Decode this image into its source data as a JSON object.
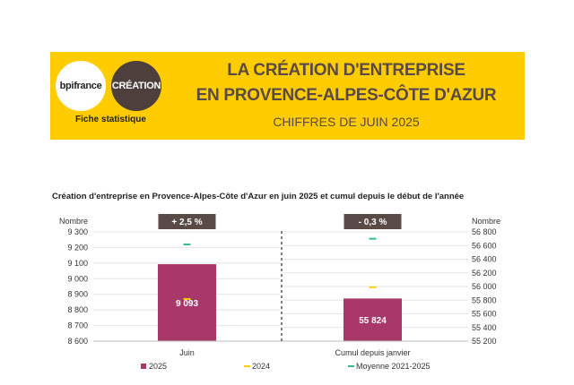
{
  "header": {
    "logo_left": "bpifrance",
    "logo_right": "CRÉATION",
    "subtitle": "Fiche statistique",
    "title_line1": "LA CRÉATION D'ENTREPRISE",
    "title_line2": "EN PROVENCE-ALPES-CÔTE D'AZUR",
    "title_line3": "CHIFFRES DE JUIN 2025",
    "brand_color": "#ffcc00"
  },
  "chart_data": {
    "type": "bar",
    "title": "Création d'entreprise en Provence-Alpes-Côte d'Azur en juin 2025 et cumul depuis le début de l'année",
    "colors": {
      "2025": "#a8386a",
      "2024": "#ffcc00",
      "Moyenne 2021-2025": "#33bb88"
    },
    "panels": [
      {
        "category": "Juin",
        "ylabel": "Nombre",
        "ylim": [
          8600,
          9300
        ],
        "ticks": [
          8600,
          8700,
          8800,
          8900,
          9000,
          9100,
          9200,
          9300
        ],
        "tick_labels": [
          "8 600",
          "8 700",
          "8 800",
          "8 900",
          "9 000",
          "9 100",
          "9 200",
          "9 300"
        ],
        "bar_value": 9093,
        "bar_label": "9 093",
        "v2024": 8870,
        "avg": 9220,
        "badge": "+ 2,5 %"
      },
      {
        "category": "Cumul depuis janvier",
        "ylabel": "Nombre",
        "ylim": [
          55200,
          56800
        ],
        "ticks": [
          55200,
          55400,
          55600,
          55800,
          56000,
          56200,
          56400,
          56600,
          56800
        ],
        "tick_labels": [
          "55 200",
          "55 400",
          "55 600",
          "55 800",
          "56 000",
          "56 200",
          "56 400",
          "56 600",
          "56 800"
        ],
        "bar_value": 55824,
        "bar_label": "55 824",
        "v2024": 55990,
        "avg": 56700,
        "badge": "- 0,3 %"
      }
    ],
    "legend": [
      "2025",
      "2024",
      "Moyenne 2021-2025"
    ]
  }
}
